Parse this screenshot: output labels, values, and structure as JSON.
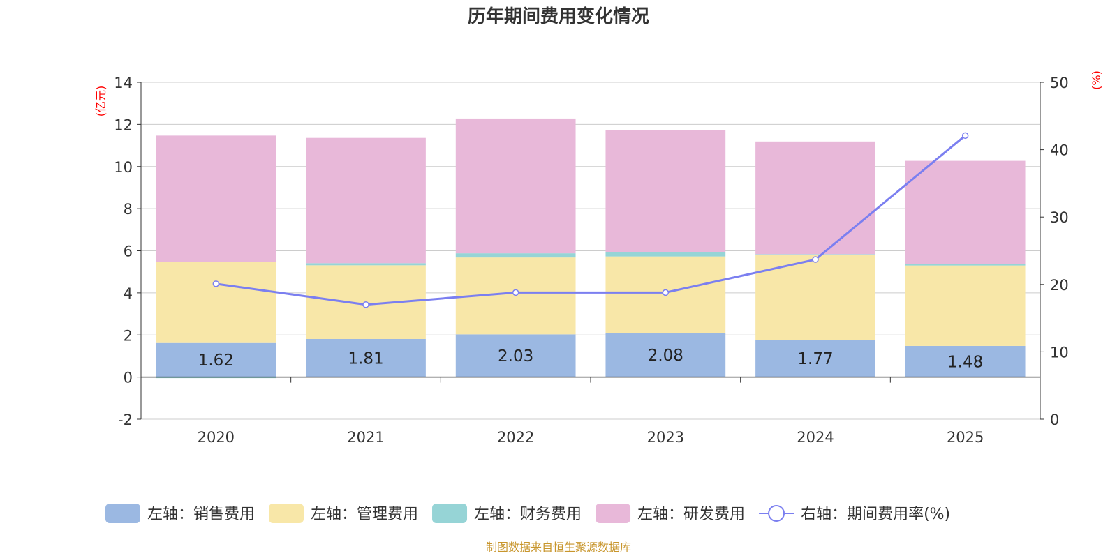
{
  "chart_data": {
    "type": "bar",
    "stacked": true,
    "title": "历年期间费用变化情况",
    "categories": [
      "2020",
      "2021",
      "2022",
      "2023",
      "2024",
      "2025"
    ],
    "left_axis": {
      "unit_label": "(亿元)",
      "ylim": [
        -2,
        14
      ],
      "ticks": [
        -2,
        0,
        2,
        4,
        6,
        8,
        10,
        12,
        14
      ]
    },
    "right_axis": {
      "unit_label": "(%)",
      "ylim": [
        0,
        50
      ],
      "ticks": [
        0,
        10,
        20,
        30,
        40,
        50
      ]
    },
    "series": [
      {
        "name": "左轴：销售费用",
        "color": "#9bb8e2",
        "axis": "left",
        "values": [
          1.62,
          1.81,
          2.03,
          2.08,
          1.77,
          1.48
        ],
        "data_labels": [
          "1.62",
          "1.81",
          "2.03",
          "2.08",
          "1.77",
          "1.48"
        ]
      },
      {
        "name": "左轴：管理费用",
        "color": "#f8e7a8",
        "axis": "left",
        "values": [
          3.85,
          3.5,
          3.65,
          3.65,
          4.05,
          3.82
        ]
      },
      {
        "name": "左轴：财务费用",
        "color": "#96d4d6",
        "axis": "left",
        "values": [
          -0.05,
          0.1,
          0.2,
          0.2,
          0.02,
          0.07
        ]
      },
      {
        "name": "左轴：研发费用",
        "color": "#e8b8d9",
        "axis": "left",
        "values": [
          6.0,
          5.95,
          6.4,
          5.8,
          5.35,
          4.9
        ]
      },
      {
        "name": "右轴：期间费用率(%)",
        "color": "#7b7ff0",
        "axis": "right",
        "type": "line",
        "values": [
          20.1,
          17.0,
          18.8,
          18.8,
          23.7,
          42.1
        ]
      }
    ],
    "grid": true,
    "legend_position": "bottom"
  },
  "source_note": "制图数据来自恒生聚源数据库"
}
